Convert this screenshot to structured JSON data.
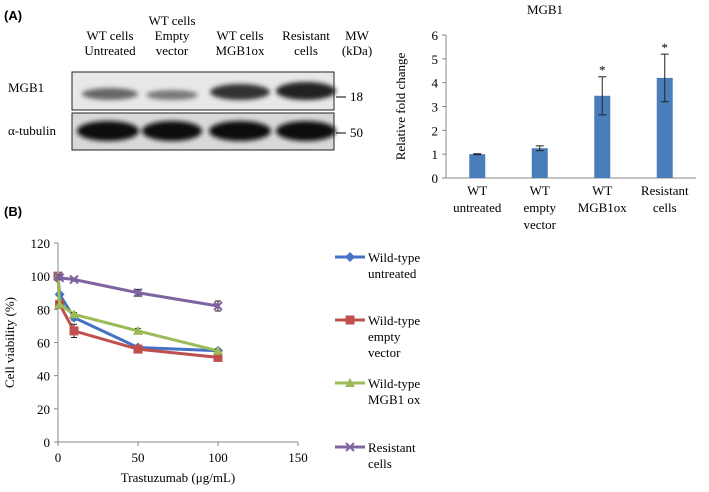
{
  "panels": [
    "(A)",
    "(B)"
  ],
  "blot": {
    "lanes": [
      "WT cells\nUntreated",
      "WT cells\nEmpty\nvector",
      "WT cells\nMGB1ox",
      "Resistant\ncells"
    ],
    "mw_header": "MW\n(kDa)",
    "rows": [
      {
        "label": "MGB1",
        "mw": "18"
      },
      {
        "label": "α-tubulin",
        "mw": "50"
      }
    ]
  },
  "chart_data": [
    {
      "type": "bar",
      "title": "MGB1",
      "categories": [
        "WT\nuntreated",
        "WT\nempty\nvector",
        "WT\nMGB1ox",
        "Resistant\ncells"
      ],
      "values": [
        1.0,
        1.25,
        3.45,
        4.2
      ],
      "errors": [
        0.02,
        0.1,
        0.8,
        1.0
      ],
      "annotations": [
        null,
        null,
        "*",
        "*"
      ],
      "color": "#4a7ebb",
      "ylabel": "Relative fold change",
      "ylim": [
        0,
        6
      ],
      "yticks": [
        0,
        1,
        2,
        3,
        4,
        5,
        6
      ]
    },
    {
      "type": "line",
      "xlabel": "Trastuzumab (μg/mL)",
      "ylabel": "Cell viability (%)",
      "x": [
        0,
        1,
        10,
        50,
        100
      ],
      "series": [
        {
          "name": "Wild-type\nuntreated",
          "color": "#4472c4",
          "marker": "diamond",
          "values": [
            100,
            89,
            75,
            57,
            55
          ],
          "errors": [
            1,
            1,
            1.5,
            1,
            1
          ]
        },
        {
          "name": "Wild-type\nempty\nvector",
          "color": "#c0504d",
          "marker": "square",
          "values": [
            100,
            83,
            67,
            56,
            51
          ],
          "errors": [
            1,
            1,
            4,
            1.5,
            2
          ]
        },
        {
          "name": "Wild-type\nMGB1 ox",
          "color": "#9bbb59",
          "marker": "triangle",
          "values": [
            100,
            83,
            77,
            67,
            55
          ],
          "errors": [
            1,
            1,
            1,
            1.5,
            1
          ]
        },
        {
          "name": "Resistant\ncells",
          "color": "#8064a2",
          "marker": "x",
          "values": [
            100,
            99,
            98,
            90,
            82
          ],
          "errors": [
            1,
            1,
            1,
            2,
            3
          ]
        }
      ],
      "xlim": [
        0,
        150
      ],
      "xticks": [
        0,
        50,
        100,
        150
      ],
      "ylim": [
        0,
        120
      ],
      "yticks": [
        0,
        20,
        40,
        60,
        80,
        100,
        120
      ]
    }
  ]
}
